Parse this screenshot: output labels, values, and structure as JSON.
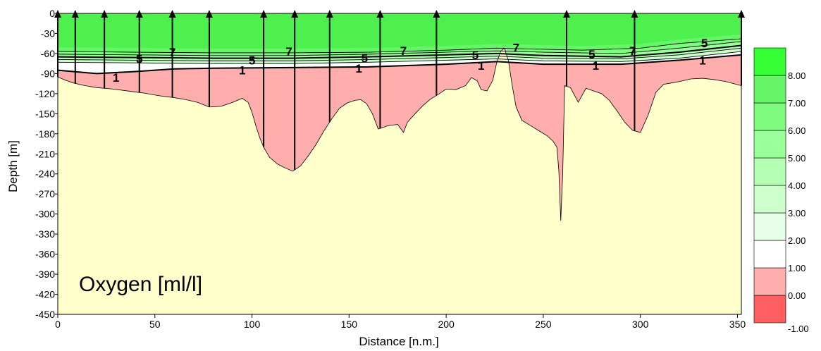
{
  "chart_data": {
    "type": "contour-section",
    "title": "",
    "parameter_label": "Oxygen [ml/l]",
    "xlabel": "Distance [n.m.]",
    "ylabel": "Depth [m]",
    "xlim": [
      0,
      352
    ],
    "ylim": [
      -450,
      0
    ],
    "x_ticks": [
      0,
      50,
      100,
      150,
      200,
      250,
      300,
      350
    ],
    "y_ticks": [
      0,
      -30,
      -60,
      -90,
      -120,
      -150,
      -180,
      -210,
      -240,
      -270,
      -300,
      -330,
      -360,
      -390,
      -420,
      -450
    ],
    "colorbar": {
      "levels": [
        -1.0,
        0.0,
        1.0,
        2.0,
        3.0,
        4.0,
        5.0,
        6.0,
        7.0,
        8.0
      ],
      "labels": [
        "-1.00",
        "0.00",
        "1.00",
        "2.00",
        "3.00",
        "4.00",
        "5.00",
        "6.00",
        "7.00",
        "8.00"
      ],
      "colors": [
        "#ff5f5f",
        "#ffadad",
        "#ffffff",
        "#e6ffe6",
        "#ccffcc",
        "#b3ffb3",
        "#99ff99",
        "#7dfc7d",
        "#66f566",
        "#33ff33"
      ]
    },
    "stations": [
      0,
      9,
      24,
      42,
      59,
      78,
      106,
      122,
      140,
      166,
      195,
      262,
      297,
      352
    ],
    "bottom_profile": [
      [
        0,
        -95
      ],
      [
        4,
        -100
      ],
      [
        8,
        -104
      ],
      [
        14,
        -108
      ],
      [
        20,
        -111
      ],
      [
        28,
        -113
      ],
      [
        36,
        -116
      ],
      [
        44,
        -119
      ],
      [
        52,
        -123
      ],
      [
        60,
        -126
      ],
      [
        66,
        -129
      ],
      [
        72,
        -133
      ],
      [
        78,
        -140
      ],
      [
        84,
        -139
      ],
      [
        90,
        -133
      ],
      [
        95,
        -127
      ],
      [
        98,
        -133
      ],
      [
        100,
        -148
      ],
      [
        102,
        -168
      ],
      [
        104,
        -186
      ],
      [
        106,
        -200
      ],
      [
        109,
        -215
      ],
      [
        113,
        -225
      ],
      [
        117,
        -231
      ],
      [
        121,
        -236
      ],
      [
        125,
        -228
      ],
      [
        129,
        -213
      ],
      [
        133,
        -196
      ],
      [
        137,
        -176
      ],
      [
        141,
        -158
      ],
      [
        145,
        -142
      ],
      [
        149,
        -134
      ],
      [
        153,
        -130
      ],
      [
        156,
        -129
      ],
      [
        159,
        -135
      ],
      [
        162,
        -150
      ],
      [
        165,
        -173
      ],
      [
        170,
        -168
      ],
      [
        175,
        -166
      ],
      [
        178,
        -178
      ],
      [
        180,
        -163
      ],
      [
        184,
        -150
      ],
      [
        188,
        -138
      ],
      [
        192,
        -128
      ],
      [
        196,
        -121
      ],
      [
        200,
        -113
      ],
      [
        205,
        -114
      ],
      [
        210,
        -108
      ],
      [
        213,
        -96
      ],
      [
        216,
        -101
      ],
      [
        218,
        -114
      ],
      [
        221,
        -116
      ],
      [
        224,
        -100
      ],
      [
        226,
        -74
      ],
      [
        228,
        -57
      ],
      [
        230,
        -52
      ],
      [
        232,
        -70
      ],
      [
        234,
        -108
      ],
      [
        236,
        -140
      ],
      [
        239,
        -160
      ],
      [
        243,
        -167
      ],
      [
        248,
        -176
      ],
      [
        252,
        -183
      ],
      [
        255,
        -191
      ],
      [
        257,
        -200
      ],
      [
        258,
        -235
      ],
      [
        259,
        -310
      ],
      [
        260,
        -240
      ],
      [
        261,
        -108
      ],
      [
        264,
        -111
      ],
      [
        268,
        -133
      ],
      [
        272,
        -112
      ],
      [
        276,
        -116
      ],
      [
        280,
        -120
      ],
      [
        284,
        -130
      ],
      [
        288,
        -146
      ],
      [
        292,
        -163
      ],
      [
        296,
        -175
      ],
      [
        300,
        -178
      ],
      [
        304,
        -152
      ],
      [
        308,
        -118
      ],
      [
        312,
        -106
      ],
      [
        316,
        -104
      ],
      [
        320,
        -102
      ],
      [
        326,
        -98
      ],
      [
        332,
        -97
      ],
      [
        338,
        -99
      ],
      [
        344,
        -102
      ],
      [
        348,
        -105
      ],
      [
        352,
        -108
      ]
    ],
    "contours": [
      {
        "level": 7,
        "points": [
          [
            0,
            -57
          ],
          [
            40,
            -58
          ],
          [
            80,
            -59
          ],
          [
            120,
            -59
          ],
          [
            160,
            -58
          ],
          [
            200,
            -55
          ],
          [
            226,
            -52
          ],
          [
            240,
            -53
          ],
          [
            270,
            -55
          ],
          [
            300,
            -52
          ],
          [
            320,
            -45
          ],
          [
            352,
            -38
          ]
        ]
      },
      {
        "level": 6,
        "points": [
          [
            0,
            -61
          ],
          [
            40,
            -62
          ],
          [
            80,
            -63
          ],
          [
            120,
            -63
          ],
          [
            160,
            -61
          ],
          [
            200,
            -58
          ],
          [
            226,
            -56
          ],
          [
            250,
            -58
          ],
          [
            290,
            -60
          ],
          [
            320,
            -52
          ],
          [
            352,
            -42
          ]
        ]
      },
      {
        "level": 5,
        "points": [
          [
            0,
            -65
          ],
          [
            40,
            -66
          ],
          [
            80,
            -67
          ],
          [
            120,
            -67
          ],
          [
            160,
            -65
          ],
          [
            200,
            -62
          ],
          [
            226,
            -60
          ],
          [
            250,
            -63
          ],
          [
            290,
            -65
          ],
          [
            320,
            -58
          ],
          [
            352,
            -48
          ]
        ]
      },
      {
        "level": 4,
        "points": [
          [
            0,
            -69
          ],
          [
            40,
            -70
          ],
          [
            80,
            -71
          ],
          [
            120,
            -71
          ],
          [
            160,
            -69
          ],
          [
            200,
            -66
          ],
          [
            226,
            -64
          ],
          [
            250,
            -67
          ],
          [
            290,
            -68
          ],
          [
            320,
            -62
          ],
          [
            352,
            -52
          ]
        ]
      },
      {
        "level": 3,
        "points": [
          [
            0,
            -73
          ],
          [
            40,
            -74
          ],
          [
            80,
            -75
          ],
          [
            120,
            -75
          ],
          [
            160,
            -73
          ],
          [
            200,
            -70
          ],
          [
            226,
            -68
          ],
          [
            250,
            -71
          ],
          [
            290,
            -72
          ],
          [
            320,
            -67
          ],
          [
            352,
            -57
          ]
        ]
      },
      {
        "level": 1,
        "points": [
          [
            0,
            -85
          ],
          [
            20,
            -90
          ],
          [
            40,
            -87
          ],
          [
            60,
            -83
          ],
          [
            80,
            -82
          ],
          [
            120,
            -81
          ],
          [
            160,
            -80
          ],
          [
            200,
            -76
          ],
          [
            226,
            -72
          ],
          [
            250,
            -76
          ],
          [
            290,
            -76
          ],
          [
            320,
            -70
          ],
          [
            352,
            -62
          ]
        ]
      }
    ],
    "contour_labels": [
      {
        "text": "1",
        "x": 30,
        "y": -96
      },
      {
        "text": "5",
        "x": 42,
        "y": -68
      },
      {
        "text": "7",
        "x": 59,
        "y": -58
      },
      {
        "text": "5",
        "x": 100,
        "y": -70
      },
      {
        "text": "1",
        "x": 95,
        "y": -85
      },
      {
        "text": "7",
        "x": 119,
        "y": -57
      },
      {
        "text": "5",
        "x": 158,
        "y": -67
      },
      {
        "text": "1",
        "x": 155,
        "y": -82
      },
      {
        "text": "7",
        "x": 178,
        "y": -56
      },
      {
        "text": "5",
        "x": 215,
        "y": -62
      },
      {
        "text": "1",
        "x": 218,
        "y": -78
      },
      {
        "text": "7",
        "x": 236,
        "y": -51
      },
      {
        "text": "5",
        "x": 275,
        "y": -61
      },
      {
        "text": "1",
        "x": 277,
        "y": -78
      },
      {
        "text": "7",
        "x": 296,
        "y": -56
      },
      {
        "text": "5",
        "x": 333,
        "y": -44
      },
      {
        "text": "1",
        "x": 332,
        "y": -70
      }
    ]
  }
}
